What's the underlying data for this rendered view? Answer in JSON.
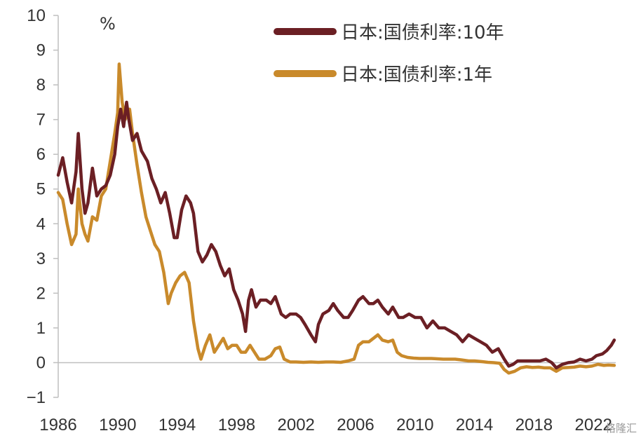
{
  "chart_data": {
    "type": "line",
    "unit": "%",
    "xlim": [
      1986,
      2023.5
    ],
    "ylim": [
      -1,
      10
    ],
    "x_ticks": [
      1986,
      1990,
      1994,
      1998,
      2002,
      2006,
      2010,
      2014,
      2018,
      2022
    ],
    "y_ticks": [
      -1,
      0,
      1,
      2,
      3,
      4,
      5,
      6,
      7,
      8,
      9,
      10
    ],
    "legend_position": "top-right",
    "series": [
      {
        "name": "日本:国债利率:10年",
        "color": "#6b1f24",
        "points": [
          [
            1986.0,
            5.4
          ],
          [
            1986.3,
            5.9
          ],
          [
            1986.6,
            5.2
          ],
          [
            1986.9,
            4.6
          ],
          [
            1987.2,
            5.5
          ],
          [
            1987.35,
            6.6
          ],
          [
            1987.6,
            5.0
          ],
          [
            1987.8,
            4.3
          ],
          [
            1988.0,
            4.6
          ],
          [
            1988.3,
            5.6
          ],
          [
            1988.6,
            4.8
          ],
          [
            1988.9,
            5.0
          ],
          [
            1989.2,
            5.1
          ],
          [
            1989.5,
            5.4
          ],
          [
            1989.8,
            6.0
          ],
          [
            1990.0,
            6.8
          ],
          [
            1990.2,
            7.3
          ],
          [
            1990.4,
            6.8
          ],
          [
            1990.6,
            7.5
          ],
          [
            1990.75,
            7.0
          ],
          [
            1991.0,
            6.4
          ],
          [
            1991.3,
            6.6
          ],
          [
            1991.6,
            6.1
          ],
          [
            1992.0,
            5.8
          ],
          [
            1992.3,
            5.3
          ],
          [
            1992.6,
            5.0
          ],
          [
            1992.9,
            4.6
          ],
          [
            1993.2,
            4.9
          ],
          [
            1993.5,
            4.3
          ],
          [
            1993.8,
            3.6
          ],
          [
            1994.0,
            3.6
          ],
          [
            1994.3,
            4.4
          ],
          [
            1994.6,
            4.8
          ],
          [
            1994.9,
            4.6
          ],
          [
            1995.1,
            4.3
          ],
          [
            1995.4,
            3.2
          ],
          [
            1995.7,
            2.9
          ],
          [
            1996.0,
            3.1
          ],
          [
            1996.3,
            3.4
          ],
          [
            1996.6,
            3.2
          ],
          [
            1996.9,
            2.8
          ],
          [
            1997.2,
            2.5
          ],
          [
            1997.5,
            2.7
          ],
          [
            1997.8,
            2.1
          ],
          [
            1998.1,
            1.8
          ],
          [
            1998.4,
            1.4
          ],
          [
            1998.6,
            0.9
          ],
          [
            1998.8,
            1.8
          ],
          [
            1999.0,
            2.1
          ],
          [
            1999.3,
            1.6
          ],
          [
            1999.6,
            1.8
          ],
          [
            2000.0,
            1.8
          ],
          [
            2000.3,
            1.7
          ],
          [
            2000.6,
            1.9
          ],
          [
            2001.0,
            1.4
          ],
          [
            2001.3,
            1.3
          ],
          [
            2001.6,
            1.4
          ],
          [
            2002.0,
            1.4
          ],
          [
            2002.3,
            1.3
          ],
          [
            2002.6,
            1.1
          ],
          [
            2003.0,
            0.8
          ],
          [
            2003.3,
            0.6
          ],
          [
            2003.5,
            1.1
          ],
          [
            2003.8,
            1.4
          ],
          [
            2004.2,
            1.5
          ],
          [
            2004.5,
            1.7
          ],
          [
            2004.8,
            1.5
          ],
          [
            2005.2,
            1.3
          ],
          [
            2005.5,
            1.3
          ],
          [
            2005.8,
            1.5
          ],
          [
            2006.2,
            1.8
          ],
          [
            2006.5,
            1.9
          ],
          [
            2006.9,
            1.7
          ],
          [
            2007.2,
            1.7
          ],
          [
            2007.5,
            1.8
          ],
          [
            2007.8,
            1.6
          ],
          [
            2008.2,
            1.4
          ],
          [
            2008.5,
            1.6
          ],
          [
            2008.9,
            1.3
          ],
          [
            2009.2,
            1.3
          ],
          [
            2009.6,
            1.4
          ],
          [
            2010.0,
            1.3
          ],
          [
            2010.4,
            1.3
          ],
          [
            2010.8,
            1.0
          ],
          [
            2011.2,
            1.2
          ],
          [
            2011.6,
            1.0
          ],
          [
            2012.0,
            1.0
          ],
          [
            2012.4,
            0.9
          ],
          [
            2012.8,
            0.8
          ],
          [
            2013.2,
            0.6
          ],
          [
            2013.6,
            0.8
          ],
          [
            2014.0,
            0.7
          ],
          [
            2014.4,
            0.6
          ],
          [
            2014.8,
            0.5
          ],
          [
            2015.2,
            0.3
          ],
          [
            2015.6,
            0.4
          ],
          [
            2016.0,
            0.1
          ],
          [
            2016.3,
            -0.1
          ],
          [
            2016.6,
            -0.05
          ],
          [
            2016.9,
            0.05
          ],
          [
            2017.3,
            0.05
          ],
          [
            2017.7,
            0.05
          ],
          [
            2018.0,
            0.05
          ],
          [
            2018.4,
            0.05
          ],
          [
            2018.8,
            0.1
          ],
          [
            2019.2,
            0.0
          ],
          [
            2019.5,
            -0.15
          ],
          [
            2019.9,
            -0.05
          ],
          [
            2020.3,
            0.0
          ],
          [
            2020.7,
            0.02
          ],
          [
            2021.1,
            0.1
          ],
          [
            2021.5,
            0.05
          ],
          [
            2021.9,
            0.1
          ],
          [
            2022.2,
            0.2
          ],
          [
            2022.6,
            0.25
          ],
          [
            2022.9,
            0.35
          ],
          [
            2023.2,
            0.5
          ],
          [
            2023.4,
            0.65
          ]
        ]
      },
      {
        "name": "日本:国债利率:1年",
        "color": "#c98a2b",
        "points": [
          [
            1986.0,
            4.9
          ],
          [
            1986.3,
            4.7
          ],
          [
            1986.6,
            4.0
          ],
          [
            1986.9,
            3.4
          ],
          [
            1987.2,
            3.7
          ],
          [
            1987.35,
            5.0
          ],
          [
            1987.6,
            4.0
          ],
          [
            1987.8,
            3.7
          ],
          [
            1988.0,
            3.5
          ],
          [
            1988.3,
            4.2
          ],
          [
            1988.6,
            4.1
          ],
          [
            1988.9,
            4.8
          ],
          [
            1989.2,
            5.0
          ],
          [
            1989.5,
            5.8
          ],
          [
            1989.8,
            6.6
          ],
          [
            1990.0,
            7.2
          ],
          [
            1990.1,
            8.6
          ],
          [
            1990.3,
            7.5
          ],
          [
            1990.5,
            7.0
          ],
          [
            1990.8,
            7.3
          ],
          [
            1991.0,
            6.6
          ],
          [
            1991.3,
            5.7
          ],
          [
            1991.6,
            4.9
          ],
          [
            1991.9,
            4.2
          ],
          [
            1992.2,
            3.8
          ],
          [
            1992.5,
            3.4
          ],
          [
            1992.8,
            3.2
          ],
          [
            1993.1,
            2.6
          ],
          [
            1993.4,
            1.7
          ],
          [
            1993.6,
            2.0
          ],
          [
            1993.9,
            2.3
          ],
          [
            1994.2,
            2.5
          ],
          [
            1994.5,
            2.6
          ],
          [
            1994.8,
            2.3
          ],
          [
            1995.1,
            1.2
          ],
          [
            1995.4,
            0.4
          ],
          [
            1995.6,
            0.1
          ],
          [
            1995.9,
            0.5
          ],
          [
            1996.2,
            0.8
          ],
          [
            1996.5,
            0.3
          ],
          [
            1996.8,
            0.5
          ],
          [
            1997.1,
            0.7
          ],
          [
            1997.4,
            0.4
          ],
          [
            1997.7,
            0.5
          ],
          [
            1998.0,
            0.5
          ],
          [
            1998.3,
            0.3
          ],
          [
            1998.6,
            0.3
          ],
          [
            1998.9,
            0.5
          ],
          [
            1999.2,
            0.3
          ],
          [
            1999.5,
            0.1
          ],
          [
            1999.9,
            0.1
          ],
          [
            2000.3,
            0.2
          ],
          [
            2000.6,
            0.4
          ],
          [
            2000.9,
            0.45
          ],
          [
            2001.2,
            0.1
          ],
          [
            2001.6,
            0.02
          ],
          [
            2002.0,
            0.02
          ],
          [
            2002.5,
            0.01
          ],
          [
            2003.0,
            0.02
          ],
          [
            2003.5,
            0.01
          ],
          [
            2004.0,
            0.02
          ],
          [
            2004.5,
            0.02
          ],
          [
            2005.0,
            0.01
          ],
          [
            2005.5,
            0.05
          ],
          [
            2005.9,
            0.1
          ],
          [
            2006.2,
            0.5
          ],
          [
            2006.5,
            0.6
          ],
          [
            2006.9,
            0.6
          ],
          [
            2007.2,
            0.7
          ],
          [
            2007.5,
            0.8
          ],
          [
            2007.8,
            0.65
          ],
          [
            2008.2,
            0.6
          ],
          [
            2008.5,
            0.65
          ],
          [
            2008.8,
            0.3
          ],
          [
            2009.1,
            0.2
          ],
          [
            2009.5,
            0.15
          ],
          [
            2009.9,
            0.13
          ],
          [
            2010.3,
            0.12
          ],
          [
            2010.7,
            0.12
          ],
          [
            2011.1,
            0.12
          ],
          [
            2011.5,
            0.11
          ],
          [
            2011.9,
            0.1
          ],
          [
            2012.3,
            0.1
          ],
          [
            2012.7,
            0.1
          ],
          [
            2013.1,
            0.08
          ],
          [
            2013.6,
            0.05
          ],
          [
            2014.0,
            0.05
          ],
          [
            2014.5,
            0.03
          ],
          [
            2014.9,
            0.01
          ],
          [
            2015.3,
            0.0
          ],
          [
            2015.7,
            -0.02
          ],
          [
            2016.0,
            -0.2
          ],
          [
            2016.3,
            -0.3
          ],
          [
            2016.7,
            -0.25
          ],
          [
            2017.1,
            -0.15
          ],
          [
            2017.5,
            -0.12
          ],
          [
            2017.9,
            -0.14
          ],
          [
            2018.3,
            -0.13
          ],
          [
            2018.7,
            -0.15
          ],
          [
            2019.1,
            -0.15
          ],
          [
            2019.5,
            -0.25
          ],
          [
            2019.9,
            -0.15
          ],
          [
            2020.3,
            -0.14
          ],
          [
            2020.7,
            -0.13
          ],
          [
            2021.1,
            -0.1
          ],
          [
            2021.5,
            -0.12
          ],
          [
            2021.9,
            -0.1
          ],
          [
            2022.3,
            -0.05
          ],
          [
            2022.7,
            -0.08
          ],
          [
            2023.0,
            -0.07
          ],
          [
            2023.4,
            -0.08
          ]
        ]
      }
    ]
  },
  "watermark": "格隆汇"
}
